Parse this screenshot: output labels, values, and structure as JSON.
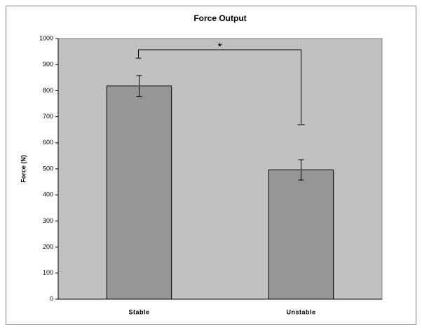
{
  "chart_data": {
    "type": "bar",
    "title": "Force Output",
    "y_label": "Force (N)",
    "categories": [
      "Stable",
      "Unstable"
    ],
    "values": [
      818,
      496
    ],
    "errors": [
      40,
      39
    ],
    "color": "#969696",
    "plot_background": "#c0c0c0",
    "ylim": [
      0,
      1000
    ],
    "yticks": [
      0,
      100,
      200,
      300,
      400,
      500,
      600,
      700,
      800,
      900,
      1000
    ],
    "grid": false,
    "annotation": "*"
  }
}
